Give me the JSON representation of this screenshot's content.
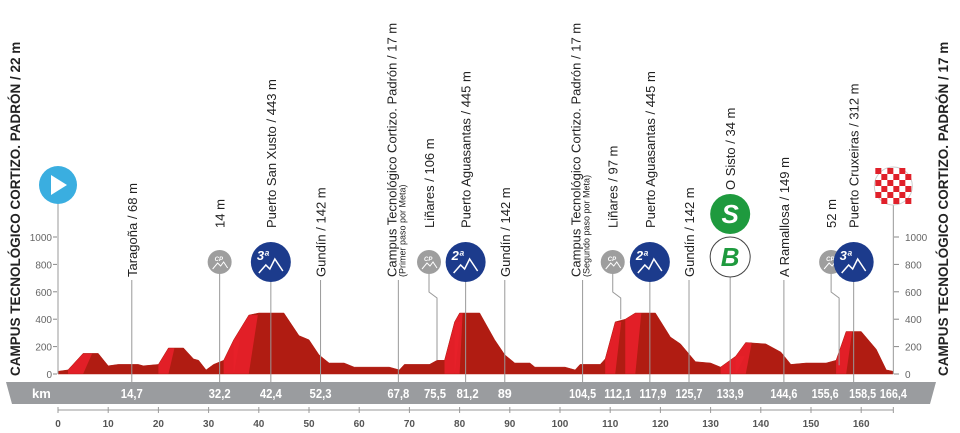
{
  "chart_data": {
    "type": "area",
    "start_title": "CAMPUS TECNOLÓGICO CORTIZO. PADRÓN / 22 m",
    "finish_title": "CAMPUS TECNOLÓGICO CORTIZO. PADRÓN / 17 m",
    "xlabel": "km",
    "xlim": [
      0,
      166.4
    ],
    "ylim": [
      0,
      1000
    ],
    "x_ticks": [
      0,
      10,
      20,
      30,
      40,
      50,
      60,
      70,
      80,
      90,
      100,
      110,
      120,
      130,
      140,
      150,
      160
    ],
    "y_ticks": [
      0,
      200,
      400,
      600,
      800,
      1000
    ],
    "profile": [
      [
        0,
        20
      ],
      [
        2,
        30
      ],
      [
        5,
        150
      ],
      [
        8,
        150
      ],
      [
        10,
        60
      ],
      [
        12,
        70
      ],
      [
        16,
        70
      ],
      [
        17,
        60
      ],
      [
        20,
        70
      ],
      [
        22,
        190
      ],
      [
        25,
        190
      ],
      [
        27,
        110
      ],
      [
        28,
        100
      ],
      [
        29.5,
        30
      ],
      [
        31,
        70
      ],
      [
        33,
        100
      ],
      [
        35,
        250
      ],
      [
        38,
        430
      ],
      [
        40,
        445
      ],
      [
        45,
        445
      ],
      [
        48,
        280
      ],
      [
        50,
        250
      ],
      [
        52,
        140
      ],
      [
        54,
        80
      ],
      [
        57,
        80
      ],
      [
        59,
        50
      ],
      [
        66,
        50
      ],
      [
        68,
        30
      ],
      [
        69,
        70
      ],
      [
        74,
        70
      ],
      [
        75.5,
        100
      ],
      [
        77,
        100
      ],
      [
        79,
        380
      ],
      [
        80,
        445
      ],
      [
        84,
        445
      ],
      [
        87,
        250
      ],
      [
        89,
        140
      ],
      [
        91,
        80
      ],
      [
        94,
        80
      ],
      [
        95,
        50
      ],
      [
        101,
        50
      ],
      [
        103,
        30
      ],
      [
        104,
        70
      ],
      [
        108,
        70
      ],
      [
        109,
        110
      ],
      [
        111,
        380
      ],
      [
        113,
        400
      ],
      [
        115,
        445
      ],
      [
        119,
        445
      ],
      [
        122,
        270
      ],
      [
        124,
        220
      ],
      [
        127,
        90
      ],
      [
        130,
        80
      ],
      [
        132,
        50
      ],
      [
        135,
        130
      ],
      [
        137,
        230
      ],
      [
        141,
        220
      ],
      [
        144,
        160
      ],
      [
        146,
        70
      ],
      [
        149,
        80
      ],
      [
        153,
        80
      ],
      [
        155,
        100
      ],
      [
        157,
        310
      ],
      [
        160,
        310
      ],
      [
        163,
        180
      ],
      [
        165,
        30
      ],
      [
        166.4,
        20
      ]
    ],
    "points": [
      {
        "km": 14.7,
        "km_label": "14,7",
        "name": "Taragoña / 68 m",
        "sub": "",
        "icon": ""
      },
      {
        "km": 32.2,
        "km_label": "32,2",
        "name": "14 m",
        "sub": "",
        "icon": "CP"
      },
      {
        "km": 42.4,
        "km_label": "42,4",
        "name": "Puerto San Xusto / 443 m",
        "sub": "",
        "icon": "3ª"
      },
      {
        "km": 52.3,
        "km_label": "52,3",
        "name": "Gundín / 142 m",
        "sub": "",
        "icon": ""
      },
      {
        "km": 67.8,
        "km_label": "67,8",
        "name": "Campus Tecnológico Cortizo. Padrón / 17 m",
        "sub": "(Primer paso por Meta)",
        "icon": ""
      },
      {
        "km": 75.5,
        "km_label": "75,5",
        "name": "Liñares / 106 m",
        "sub": "",
        "icon": "CP"
      },
      {
        "km": 81.2,
        "km_label": "81,2",
        "name": "Puerto Aguasantas / 445 m",
        "sub": "",
        "icon": "2ª"
      },
      {
        "km": 89,
        "km_label": "89",
        "name": "Gundín / 142 m",
        "sub": "",
        "icon": ""
      },
      {
        "km": 104.5,
        "km_label": "104,5",
        "name": "Campus Tecnológico Cortizo. Padrón / 17 m",
        "sub": "(Segundo paso por Meta)",
        "icon": ""
      },
      {
        "km": 112.1,
        "km_label": "112,1",
        "name": "Liñares / 97 m",
        "sub": "",
        "icon": "CP"
      },
      {
        "km": 117.9,
        "km_label": "117,9",
        "name": "Puerto Aguasantas / 445 m",
        "sub": "",
        "icon": "2ª"
      },
      {
        "km": 125.7,
        "km_label": "125,7",
        "name": "Gundín / 142 m",
        "sub": "",
        "icon": ""
      },
      {
        "km": 133.9,
        "km_label": "133,9",
        "name": "O Sisto / 34 m",
        "sub": "",
        "icon": "SB"
      },
      {
        "km": 144.6,
        "km_label": "144,6",
        "name": "A Ramallosa / 149 m",
        "sub": "",
        "icon": ""
      },
      {
        "km": 155.6,
        "km_label": "155,6",
        "name": "52 m",
        "sub": "",
        "icon": "CP"
      },
      {
        "km": 158.5,
        "km_label": "158,5",
        "name": "Puerto Cruxeiras / 312 m",
        "sub": "",
        "icon": "3ª"
      },
      {
        "km": 166.4,
        "km_label": "166,4",
        "name": "",
        "sub": "",
        "icon": "finish"
      }
    ],
    "colors": {
      "profile_dark": "#b01c12",
      "profile_light": "#e8202a",
      "band": "#9a9c9f",
      "cat": "#1c3b8c",
      "cp": "#9e9e9e",
      "start": "#3aaee0",
      "sprint": "#1e9a3e"
    }
  }
}
